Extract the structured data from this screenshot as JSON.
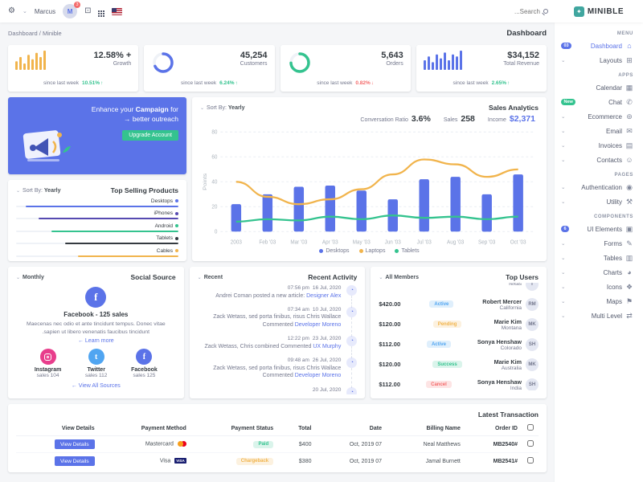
{
  "brand": {
    "name": "MINIBLE"
  },
  "topbar": {
    "user_name": "Marcus",
    "notification_count": "3",
    "search_placeholder": "Search..."
  },
  "breadcrumb": {
    "path": "Dashboard / Minible",
    "title": "Dashboard"
  },
  "colors": {
    "primary": "#5b73e8",
    "success": "#34c38f",
    "warning": "#f1b44c",
    "danger": "#f46a6a",
    "info": "#50a5f1"
  },
  "stats": [
    {
      "label": "Growth",
      "value": "+ 12.58%",
      "since": "since last week",
      "delta": "10.51%",
      "trend": "up",
      "chart": "bars",
      "color": "#f1b44c",
      "spark": [
        4,
        6,
        3,
        7,
        5,
        8,
        6,
        9
      ]
    },
    {
      "label": "Customers",
      "value": "45,254",
      "since": "since last week",
      "delta": "6.24%",
      "trend": "up",
      "chart": "donut",
      "color": "#5b73e8",
      "percent": 68
    },
    {
      "label": "Orders",
      "value": "5,643",
      "since": "since last week",
      "delta": "0.82%",
      "trend": "down",
      "chart": "donut",
      "color": "#34c38f",
      "percent": 74
    },
    {
      "label": "Total Revenue",
      "value": "$34,152",
      "since": "since last week",
      "delta": "2.65%",
      "trend": "up",
      "chart": "bars",
      "color": "#5b73e8",
      "spark": [
        5,
        7,
        4,
        8,
        6,
        9,
        5,
        8,
        7,
        10
      ]
    }
  ],
  "campaign": {
    "text_before": "Enhance your ",
    "highlight": "Campaign",
    "text_after": " for better outreach",
    "arrow": "→",
    "button_label": "Upgrade Account"
  },
  "sales_analytics": {
    "title": "Sales Analytics",
    "sort_label": "Sort By:",
    "sort_value": "Yearly",
    "kpis": [
      {
        "label": "Conversation Ratio",
        "value": "3.6%"
      },
      {
        "label": "Sales",
        "value": "258"
      },
      {
        "label": "Income",
        "value": "$2,371"
      }
    ],
    "chart_data": {
      "type": "bar+line",
      "categories": [
        "2003",
        "Feb '03",
        "Mar '03",
        "Apr '03",
        "May '03",
        "Jun '03",
        "Jul '03",
        "Aug '03",
        "Sep '03",
        "Oct '03"
      ],
      "series": [
        {
          "name": "Desktops",
          "type": "bar",
          "color": "#5b73e8",
          "values": [
            22,
            30,
            36,
            37,
            33,
            26,
            42,
            44,
            30,
            46
          ]
        },
        {
          "name": "Laptops",
          "type": "line",
          "color": "#f1b44c",
          "values": [
            40,
            28,
            22,
            26,
            34,
            46,
            58,
            54,
            44,
            50
          ]
        },
        {
          "name": "Tablets",
          "type": "line",
          "color": "#34c38f",
          "values": [
            8,
            10,
            9,
            12,
            10,
            13,
            11,
            12,
            10,
            12
          ]
        }
      ],
      "ylim": [
        0,
        80
      ],
      "yticks": [
        0,
        20,
        40,
        60,
        80
      ],
      "ylabel": "Points",
      "grid": true,
      "legend_position": "bottom"
    }
  },
  "top_selling": {
    "title": "Top Selling Products",
    "sort_label": "Sort By:",
    "sort_value": "Yearly",
    "products": [
      {
        "name": "Desktops",
        "color": "#5b73e8",
        "percent": 94
      },
      {
        "name": "iPhones",
        "color": "#564ab1",
        "percent": 86
      },
      {
        "name": "Android",
        "color": "#34c38f",
        "percent": 78
      },
      {
        "name": "Tablets",
        "color": "#343a40",
        "percent": 70
      },
      {
        "name": "Cables",
        "color": "#f1b44c",
        "percent": 62
      }
    ]
  },
  "social": {
    "title": "Social Source",
    "sort_value": "Monthly",
    "featured": {
      "heading": "Facebook - 125 sales",
      "description": "Maecenas nec odio et ante tincidunt tempus. Donec vitae sapien ut libero venenatis faucibus tincidunt.",
      "learn_more_label": "Learn more"
    },
    "sources": [
      {
        "name": "Instagram",
        "sales": "sales 104",
        "color": "#e83e8c"
      },
      {
        "name": "Twitter",
        "sales": "sales 112",
        "color": "#50a5f1"
      },
      {
        "name": "Facebook",
        "sales": "sales 125",
        "color": "#5b73e8"
      }
    ],
    "view_all_label": "View All Sources"
  },
  "recent_activity": {
    "title": "Recent Activity",
    "sort_value": "Recent",
    "items": [
      {
        "date": "16 Jul, 2020",
        "time": "07:56 pm",
        "text": "Andrei Coman posted a new article: ",
        "link": "Designer Alex"
      },
      {
        "date": "10 Jul, 2020",
        "time": "07:34 am",
        "text": "Zack Wetass, sed porta finibus, risus Chris Wallace Commented ",
        "link": "Developer Moreno"
      },
      {
        "date": "23 Jul, 2020",
        "time": "12:22 pm",
        "text": "Zack Wetass, Chris combined Commented ",
        "link": "UX Murphy"
      },
      {
        "date": "26 Jul, 2020",
        "time": "09:48 am",
        "text": "Zack Wetass, sed porta finibus, risus Chris Wallace Commented ",
        "link": "Developer Moreno"
      },
      {
        "date": "20 Jul, 2020",
        "time": "",
        "text": "",
        "link": ""
      }
    ]
  },
  "top_users": {
    "title": "Top Users",
    "sort_value": "All Members",
    "rows": [
      {
        "name": "",
        "location": "Texas",
        "amount": "",
        "status": "",
        "status_type": ""
      },
      {
        "name": "Robert Mercer",
        "location": "California",
        "amount": "$420.00",
        "status": "Active",
        "status_type": "info"
      },
      {
        "name": "Marie Kim",
        "location": "Montana",
        "amount": "$120.00",
        "status": "Pending",
        "status_type": "warning"
      },
      {
        "name": "Sonya Henshaw",
        "location": "Colorado",
        "amount": "$112.00",
        "status": "Active",
        "status_type": "info"
      },
      {
        "name": "Marie Kim",
        "location": "Australia",
        "amount": "$120.00",
        "status": "Success",
        "status_type": "success"
      },
      {
        "name": "Sonya Henshaw",
        "location": "India",
        "amount": "$112.00",
        "status": "Cancel",
        "status_type": "danger"
      }
    ]
  },
  "transactions": {
    "title": "Latest Transaction",
    "headers": [
      "Order ID",
      "Billing Name",
      "Date",
      "Total",
      "Payment Status",
      "Payment Method",
      "View Details"
    ],
    "rows": [
      {
        "order_id": "#MB2540",
        "billing_name": "Neal Matthews",
        "date": "07 Oct, 2019",
        "total": "$400",
        "payment_status": "Paid",
        "status_type": "success",
        "payment_method": "Mastercard",
        "method_icon": "mastercard-icon",
        "action_label": "View Details"
      },
      {
        "order_id": "#MB2541",
        "billing_name": "Jamal Burnett",
        "date": "07 Oct, 2019",
        "total": "$380",
        "payment_status": "Chargeback",
        "status_type": "warning",
        "payment_method": "Visa",
        "method_icon": "visa-icon",
        "action_label": "View Details"
      }
    ]
  },
  "sidebar": {
    "sections": [
      {
        "label": "MENU",
        "items": [
          {
            "label": "Dashboard",
            "icon": "home-icon",
            "active": true,
            "badge": "03",
            "badge_style": "primary"
          },
          {
            "label": "Layouts",
            "icon": "layouts-icon",
            "chevron": true
          }
        ]
      },
      {
        "label": "APPS",
        "items": [
          {
            "label": "Calendar",
            "icon": "calendar-icon"
          },
          {
            "label": "Chat",
            "icon": "chat-icon",
            "badge": "New",
            "badge_style": "success"
          },
          {
            "label": "Ecommerce",
            "icon": "ecommerce-icon",
            "chevron": true
          },
          {
            "label": "Email",
            "icon": "email-icon",
            "chevron": true
          },
          {
            "label": "Invoices",
            "icon": "invoices-icon",
            "chevron": true
          },
          {
            "label": "Contacts",
            "icon": "contacts-icon",
            "chevron": true
          }
        ]
      },
      {
        "label": "PAGES",
        "items": [
          {
            "label": "Authentication",
            "icon": "authentication-icon",
            "chevron": true
          },
          {
            "label": "Utility",
            "icon": "utility-icon",
            "chevron": true
          }
        ]
      },
      {
        "label": "COMPONENTS",
        "items": [
          {
            "label": "UI Elements",
            "icon": "ui-elements-icon",
            "badge": "6",
            "badge_style": "primary"
          },
          {
            "label": "Forms",
            "icon": "forms-icon",
            "chevron": true
          },
          {
            "label": "Tables",
            "icon": "tables-icon",
            "chevron": true
          },
          {
            "label": "Charts",
            "icon": "charts-icon",
            "chevron": true
          },
          {
            "label": "Icons",
            "icon": "icons-icon",
            "chevron": true
          },
          {
            "label": "Maps",
            "icon": "maps-icon",
            "chevron": true
          },
          {
            "label": "Multi Level",
            "icon": "multi-level-icon",
            "chevron": true
          }
        ]
      }
    ]
  }
}
